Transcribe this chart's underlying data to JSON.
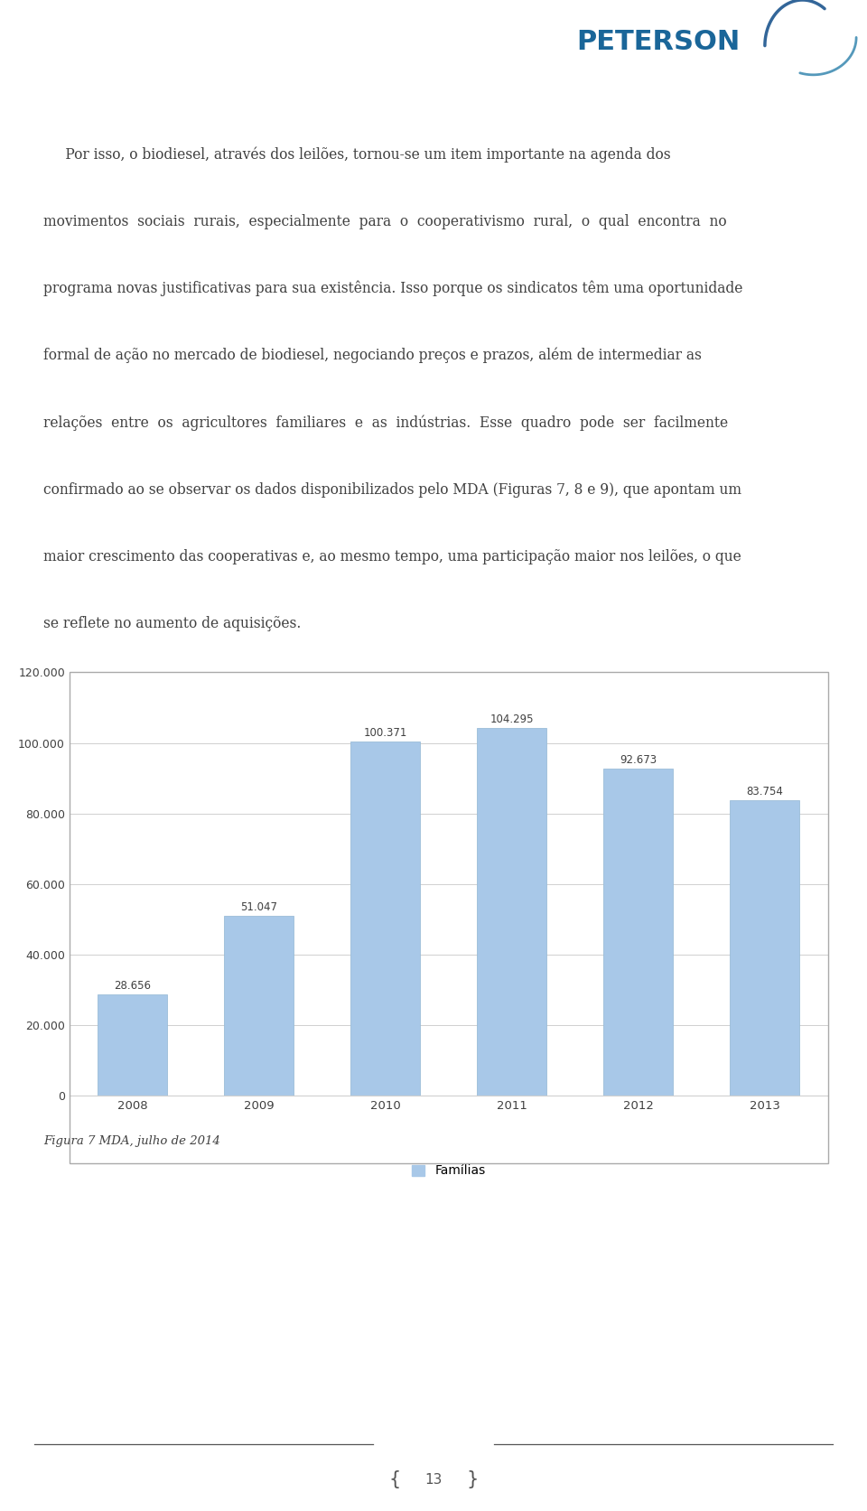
{
  "years": [
    "2008",
    "2009",
    "2010",
    "2011",
    "2012",
    "2013"
  ],
  "values": [
    28656,
    51047,
    100371,
    104295,
    92673,
    83754
  ],
  "bar_color": "#a8c8e8",
  "bar_edge_color": "#9bbdd8",
  "ylim": [
    0,
    120000
  ],
  "yticks": [
    0,
    20000,
    40000,
    60000,
    80000,
    100000,
    120000
  ],
  "ytick_labels": [
    "0",
    "20.000",
    "40.000",
    "60.000",
    "80.000",
    "100.000",
    "120.000"
  ],
  "legend_label": "Famílias",
  "legend_color": "#a8c8e8",
  "caption": "Figura 7 MDA, julho de 2014",
  "chart_bg": "#ffffff",
  "grid_color": "#d0d0d0",
  "text_color": "#404040",
  "bar_labels": [
    "28.656",
    "51.047",
    "100.371",
    "104.295",
    "92.673",
    "83.754"
  ],
  "page_text_lines": [
    "     Por isso, o biodiesel, através dos leilões, tornou-se um item importante na agenda dos",
    "movimentos  sociais  rurais,  especialmente  para  o  cooperativismo  rural,  o  qual  encontra  no",
    "programa novas justificativas para sua existência. Isso porque os sindicatos têm uma oportunidade",
    "formal de ação no mercado de biodiesel, negociando preços e prazos, além de intermediar as",
    "relações  entre  os  agricultores  familiares  e  as  indústrias.  Esse  quadro  pode  ser  facilmente",
    "confirmado ao se observar os dados disponibilizados pelo MDA (Figuras 7, 8 e 9), que apontam um",
    "maior crescimento das cooperativas e, ao mesmo tempo, uma participação maior nos leilões, o que",
    "se reflete no aumento de aquisições."
  ],
  "page_number": "13",
  "logo_text": "PETERSON",
  "figure_width": 9.6,
  "figure_height": 16.73,
  "dpi": 100
}
